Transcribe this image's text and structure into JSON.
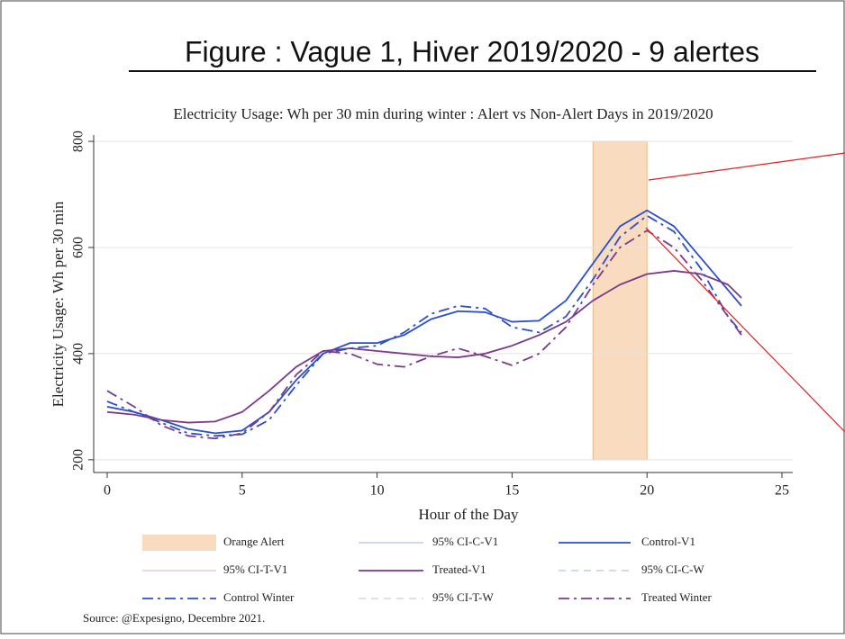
{
  "header": {
    "title": "Figure : Vague 1, Hiver 2019/2020 - 9 alertes"
  },
  "chart_data": {
    "type": "line",
    "title": "Electricity Usage: Wh per 30 min during winter : Alert vs Non-Alert Days in 2019/2020",
    "x_label": "Hour of the Day",
    "y_label": "Electricity Usage: Wh per 30 min",
    "x": [
      0,
      1,
      2,
      3,
      4,
      5,
      6,
      7,
      8,
      9,
      10,
      11,
      12,
      13,
      14,
      15,
      16,
      17,
      18,
      19,
      20,
      21,
      22,
      23,
      23.5
    ],
    "series": [
      {
        "name": "Control-V1",
        "color": "#2a4fc9",
        "dash": "solid",
        "values": [
          300,
          290,
          275,
          258,
          250,
          255,
          290,
          350,
          400,
          420,
          420,
          435,
          465,
          480,
          478,
          460,
          462,
          500,
          570,
          640,
          670,
          640,
          580,
          520,
          490
        ]
      },
      {
        "name": "Treated-V1",
        "color": "#7a3a8c",
        "dash": "solid",
        "values": [
          290,
          285,
          275,
          270,
          272,
          290,
          330,
          375,
          405,
          410,
          405,
          400,
          395,
          393,
          400,
          415,
          435,
          460,
          500,
          530,
          550,
          556,
          550,
          530,
          505
        ]
      },
      {
        "name": "Control Winter",
        "color": "#2a4fc9",
        "dash": "dashdot",
        "values": [
          310,
          290,
          270,
          250,
          245,
          248,
          275,
          340,
          400,
          410,
          415,
          440,
          475,
          490,
          485,
          450,
          440,
          470,
          540,
          620,
          660,
          630,
          560,
          470,
          440
        ]
      },
      {
        "name": "Treated Winter",
        "color": "#7a3a8c",
        "dash": "dashdot",
        "values": [
          330,
          300,
          265,
          245,
          240,
          250,
          290,
          360,
          405,
          400,
          380,
          375,
          395,
          410,
          395,
          378,
          400,
          450,
          530,
          600,
          632,
          600,
          540,
          470,
          435
        ]
      }
    ],
    "alert": {
      "name": "Orange Alert",
      "xrange": [
        18,
        20
      ],
      "color": "#f9dcc0"
    },
    "ci_legend": [
      {
        "name": "95% CI-C-V1",
        "color": "#c9d3f2",
        "dash": "solid"
      },
      {
        "name": "95% CI-T-V1",
        "color": "#e4d4ec",
        "dash": "solid"
      },
      {
        "name": "95% CI-C-W",
        "color": "#c9d3f2",
        "dash": "dashed"
      },
      {
        "name": "95% CI-T-W",
        "color": "#e4d4ec",
        "dash": "dashed"
      }
    ],
    "xlim": [
      -0.5,
      25.4
    ],
    "ylim": [
      176,
      812
    ],
    "xticks": [
      0,
      5,
      10,
      15,
      20,
      25
    ],
    "yticks": [
      200,
      400,
      600,
      800
    ],
    "grid": true,
    "source": "Source: @Expesigno, Decembre 2021."
  }
}
